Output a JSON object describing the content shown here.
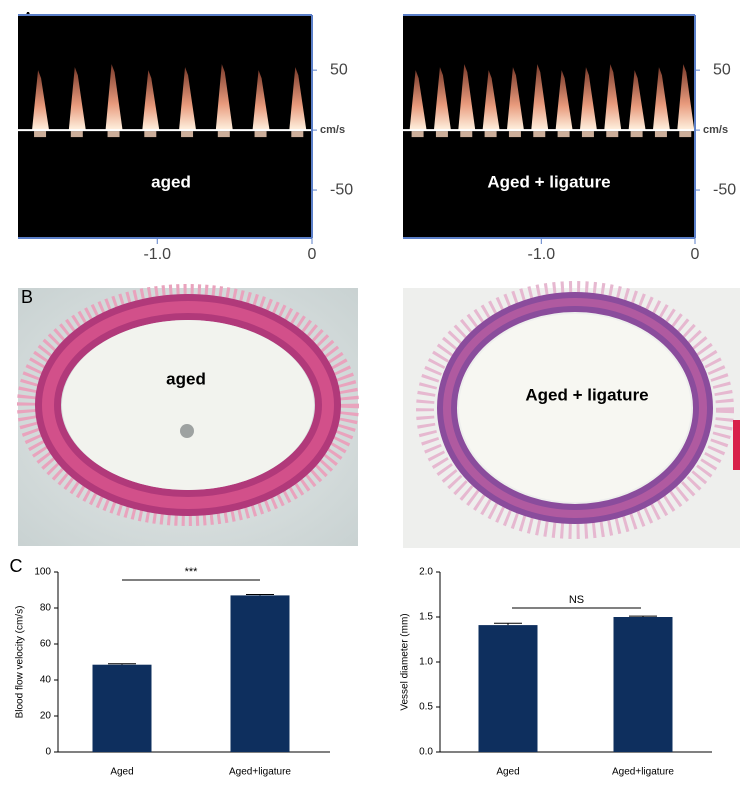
{
  "panel_labels": [
    "A",
    "B",
    "C"
  ],
  "doppler": {
    "ylim": [
      -90,
      96
    ],
    "yticks": [
      50,
      {
        "value": 0,
        "label": "cm/s"
      },
      -50
    ],
    "xlim": [
      -1.9,
      0
    ],
    "xticks": [
      {
        "value": -1,
        "label": "-1.0"
      },
      0
    ],
    "panels": [
      "aged",
      "Aged + ligature"
    ]
  },
  "histology": {
    "panels": [
      "aged",
      "Aged + ligature"
    ]
  },
  "chart_data": [
    {
      "type": "bar",
      "y_label": "Blood flow velocity (cm/s)",
      "categories": [
        "Aged",
        "Aged+ligature"
      ],
      "values": [
        48.5,
        87
      ],
      "errors": [
        0.5,
        0.5
      ],
      "color": "#0e2f5e",
      "ylim": [
        0,
        100
      ],
      "yticks": [
        0,
        20,
        40,
        60,
        80,
        100
      ],
      "annotation": "***"
    },
    {
      "type": "bar",
      "y_label": "Vessel diameter (mm)",
      "categories": [
        "Aged",
        "Aged+ligature"
      ],
      "values": [
        1.41,
        1.5
      ],
      "errors": [
        0.02,
        0.01
      ],
      "color": "#0e2f5e",
      "ylim": [
        0,
        2
      ],
      "yticks": [
        {
          "value": 0,
          "label": "0.0"
        },
        0.5,
        {
          "value": 1,
          "label": "1.0"
        },
        1.5,
        {
          "value": 2,
          "label": "2.0"
        }
      ],
      "annotation": "NS"
    }
  ]
}
